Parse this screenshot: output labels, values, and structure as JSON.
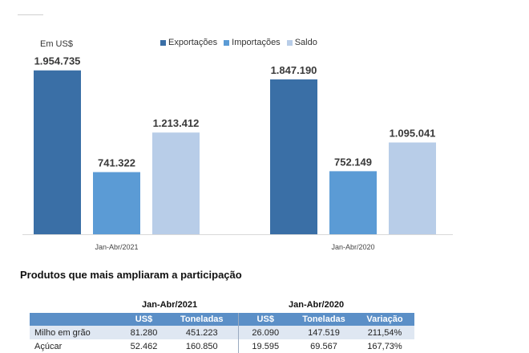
{
  "chart_data": {
    "type": "bar",
    "unit_label": "Em US$",
    "categories": [
      "Jan-Abr/2021",
      "Jan-Abr/2020"
    ],
    "series": [
      {
        "name": "Exportações",
        "values": [
          1954735,
          1847190
        ],
        "labels": [
          "1.954.735",
          "1.847.190"
        ],
        "color": "#3a6fa6"
      },
      {
        "name": "Importações",
        "values": [
          741322,
          752149
        ],
        "labels": [
          "741.322",
          "752.149"
        ],
        "color": "#5b9bd5"
      },
      {
        "name": "Saldo",
        "values": [
          1213412,
          1095041
        ],
        "labels": [
          "1.213.412",
          "1.095.041"
        ],
        "color": "#b8cde8"
      }
    ],
    "ylim": [
      0,
      2000000
    ],
    "grid": false,
    "legend_position": "top"
  },
  "products": {
    "title": "Produtos que mais ampliaram a participação",
    "period_2021": "Jan-Abr/2021",
    "period_2020": "Jan-Abr/2020",
    "columns": [
      "",
      "US$",
      "Toneladas",
      "US$",
      "Toneladas",
      "Variação"
    ],
    "rows": [
      [
        "Milho em grão",
        "81.280",
        "451.223",
        "26.090",
        "147.519",
        "211,54%"
      ],
      [
        "Açúcar",
        "52.462",
        "160.850",
        "19.595",
        "69.567",
        "167,73%"
      ]
    ],
    "header_color": "#5b8fc7",
    "stripe_color": "#dfe7f2"
  }
}
